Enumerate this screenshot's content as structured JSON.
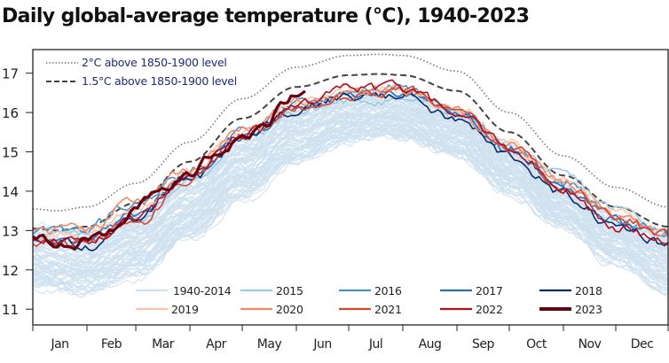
{
  "chart_data": {
    "type": "line",
    "title": "Daily global-average temperature (°C), 1940-2023",
    "xlabel": "",
    "ylabel": "",
    "x_unit": "day of year",
    "xlim": [
      1,
      365
    ],
    "ylim": [
      10.6,
      17.6
    ],
    "y_ticks": [
      11,
      12,
      13,
      14,
      15,
      16,
      17
    ],
    "x_tick_labels": [
      "Jan",
      "Feb",
      "Mar",
      "Apr",
      "May",
      "Jun",
      "Jul",
      "Aug",
      "Sep",
      "Oct",
      "Nov",
      "Dec"
    ],
    "month_start_days": [
      1,
      32,
      60,
      91,
      121,
      152,
      182,
      213,
      244,
      274,
      305,
      335,
      365
    ],
    "grid": false,
    "legend_placement": "bottom-center",
    "reference_legend_placement": "top-left",
    "reference_lines": [
      {
        "name": "2°C above 1850-1900 level",
        "style": "dotted",
        "color": "#777777",
        "x": [
          1,
          15,
          32,
          60,
          91,
          121,
          152,
          182,
          200,
          213,
          244,
          274,
          305,
          335,
          365
        ],
        "y": [
          13.55,
          13.5,
          13.6,
          14.2,
          15.25,
          16.35,
          17.15,
          17.45,
          17.48,
          17.45,
          17.05,
          16.0,
          14.9,
          14.1,
          13.6
        ]
      },
      {
        "name": "1.5°C above 1850-1900 level",
        "style": "dashed",
        "color": "#444444",
        "x": [
          1,
          15,
          32,
          60,
          91,
          121,
          152,
          182,
          200,
          213,
          244,
          274,
          305,
          335,
          365
        ],
        "y": [
          13.05,
          13.0,
          13.1,
          13.7,
          14.75,
          15.85,
          16.65,
          16.95,
          16.98,
          16.95,
          16.55,
          15.5,
          14.4,
          13.6,
          13.1
        ]
      }
    ],
    "series": [
      {
        "name": "1940-2014",
        "color": "#cfe1f0",
        "width": 1.2,
        "band_x": [
          1,
          32,
          60,
          91,
          121,
          152,
          182,
          200,
          213,
          244,
          274,
          305,
          335,
          365
        ],
        "band_low": [
          11.55,
          11.45,
          11.85,
          12.8,
          13.85,
          14.75,
          15.3,
          15.4,
          15.35,
          14.9,
          14.0,
          13.1,
          12.2,
          11.45
        ],
        "band_high": [
          13.05,
          12.95,
          13.4,
          14.3,
          15.3,
          16.1,
          16.4,
          16.45,
          16.4,
          16.0,
          15.1,
          14.1,
          13.3,
          12.9
        ]
      },
      {
        "name": "2015",
        "color": "#9ecae1",
        "width": 1.6,
        "x": [
          1,
          32,
          60,
          91,
          121,
          152,
          182,
          213,
          244,
          274,
          305,
          335,
          365
        ],
        "y": [
          12.9,
          12.85,
          13.3,
          14.25,
          15.3,
          16.0,
          16.3,
          16.35,
          15.95,
          15.15,
          14.35,
          13.55,
          13.0
        ]
      },
      {
        "name": "2016",
        "color": "#4a90c8",
        "width": 1.6,
        "x": [
          1,
          32,
          60,
          91,
          121,
          152,
          182,
          213,
          244,
          274,
          305,
          335,
          365
        ],
        "y": [
          13.0,
          13.1,
          13.7,
          14.55,
          15.5,
          16.2,
          16.45,
          16.6,
          16.05,
          15.1,
          14.2,
          13.3,
          12.9
        ]
      },
      {
        "name": "2017",
        "color": "#2f6db3",
        "width": 1.6,
        "x": [
          1,
          32,
          60,
          91,
          121,
          152,
          182,
          213,
          244,
          274,
          305,
          335,
          365
        ],
        "y": [
          12.75,
          12.8,
          13.45,
          14.4,
          15.4,
          16.1,
          16.45,
          16.5,
          15.95,
          15.05,
          14.1,
          13.25,
          12.8
        ]
      },
      {
        "name": "2018",
        "color": "#0b2b6a",
        "width": 1.6,
        "x": [
          1,
          32,
          60,
          91,
          121,
          152,
          182,
          213,
          244,
          274,
          305,
          335,
          365
        ],
        "y": [
          12.7,
          12.65,
          13.3,
          14.3,
          15.3,
          16.05,
          16.4,
          16.45,
          15.8,
          14.9,
          13.9,
          13.1,
          12.7
        ]
      },
      {
        "name": "2019",
        "color": "#fcc5a8",
        "width": 1.6,
        "x": [
          1,
          32,
          60,
          91,
          121,
          152,
          182,
          213,
          244,
          274,
          305,
          335,
          365
        ],
        "y": [
          12.85,
          12.95,
          13.55,
          14.5,
          15.5,
          16.25,
          16.55,
          16.6,
          16.1,
          15.2,
          14.3,
          13.45,
          12.95
        ]
      },
      {
        "name": "2020",
        "color": "#f08a68",
        "width": 1.6,
        "x": [
          1,
          32,
          60,
          91,
          121,
          152,
          182,
          213,
          244,
          274,
          305,
          335,
          365
        ],
        "y": [
          13.0,
          13.05,
          13.75,
          14.6,
          15.55,
          16.3,
          16.55,
          16.55,
          16.05,
          15.15,
          14.25,
          13.4,
          12.8
        ]
      },
      {
        "name": "2021",
        "color": "#d9452f",
        "width": 1.6,
        "x": [
          1,
          32,
          60,
          91,
          121,
          152,
          182,
          213,
          244,
          274,
          305,
          335,
          365
        ],
        "y": [
          12.7,
          12.65,
          13.2,
          14.3,
          15.35,
          16.1,
          16.45,
          16.55,
          16.0,
          15.1,
          14.15,
          13.35,
          12.85
        ]
      },
      {
        "name": "2022",
        "color": "#b3101f",
        "width": 1.6,
        "x": [
          1,
          32,
          60,
          91,
          121,
          152,
          182,
          213,
          244,
          274,
          305,
          335,
          365
        ],
        "y": [
          12.8,
          12.75,
          13.35,
          14.4,
          15.45,
          16.15,
          16.6,
          16.6,
          16.05,
          15.15,
          14.05,
          13.05,
          12.75
        ]
      },
      {
        "name": "2023",
        "color": "#6b0011",
        "width": 3.2,
        "x": [
          1,
          10,
          20,
          32,
          45,
          60,
          75,
          91,
          105,
          121,
          135,
          145,
          152,
          158
        ],
        "y": [
          12.95,
          12.75,
          12.6,
          12.75,
          12.95,
          13.6,
          14.0,
          14.45,
          14.95,
          15.3,
          15.8,
          16.2,
          16.5,
          16.65
        ]
      }
    ]
  }
}
